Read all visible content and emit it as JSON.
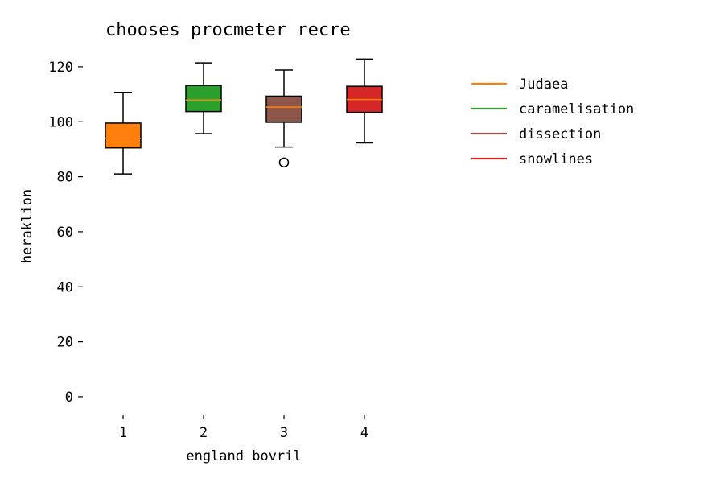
{
  "chart_data": {
    "type": "boxplot",
    "title": "chooses procmeter recre",
    "xlabel": "england bovril",
    "ylabel": "heraklion",
    "categories": [
      "1",
      "2",
      "3",
      "4"
    ],
    "ylim": [
      -5,
      127
    ],
    "y_ticks": [
      0,
      20,
      40,
      60,
      80,
      100,
      120
    ],
    "grid": false,
    "legend_position": "right",
    "median_color": "#ff7f0e",
    "boxes": [
      {
        "category": "1",
        "name": "Judaea",
        "color": "#ff7f0e",
        "whisker_low": 81,
        "q1": 90.5,
        "median": 94,
        "q3": 99.5,
        "whisker_high": 110.7,
        "outliers": []
      },
      {
        "category": "2",
        "name": "caramelisation",
        "color": "#2ca02c",
        "whisker_low": 95.7,
        "q1": 103.7,
        "median": 107.9,
        "q3": 113.2,
        "whisker_high": 121.4,
        "outliers": []
      },
      {
        "category": "3",
        "name": "dissection",
        "color": "#8c564b",
        "whisker_low": 90.8,
        "q1": 99.8,
        "median": 105.3,
        "q3": 109.3,
        "whisker_high": 118.8,
        "outliers": [
          85.2
        ]
      },
      {
        "category": "4",
        "name": "snowlines",
        "color": "#d62728",
        "whisker_low": 92.3,
        "q1": 103.4,
        "median": 108.1,
        "q3": 112.9,
        "whisker_high": 122.8,
        "outliers": []
      }
    ],
    "legend": [
      {
        "label": "Judaea",
        "color": "#ff7f0e"
      },
      {
        "label": "caramelisation",
        "color": "#2ca02c"
      },
      {
        "label": "dissection",
        "color": "#8c564b"
      },
      {
        "label": "snowlines",
        "color": "#d62728"
      }
    ]
  }
}
